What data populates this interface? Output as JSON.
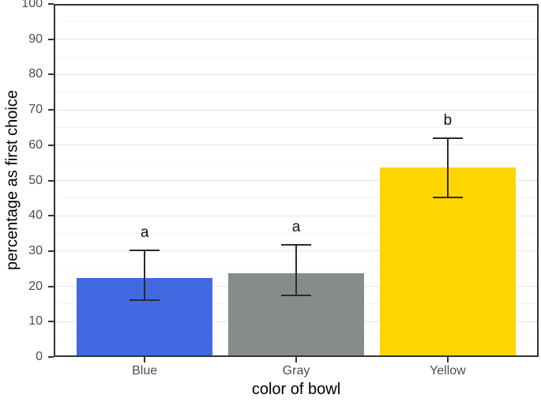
{
  "figure": {
    "type": "static-ggplot-style-bar-chart"
  },
  "chart_data": {
    "type": "bar",
    "title": "",
    "xlabel": "color of bowl",
    "ylabel": "percentage as first choice",
    "categories": [
      "Blue",
      "Gray",
      "Yellow"
    ],
    "values": [
      22.3,
      23.8,
      53.6
    ],
    "error_low": [
      16.2,
      17.4,
      45.2
    ],
    "error_high": [
      30.2,
      31.8,
      62.0
    ],
    "sig_letters": [
      "a",
      "a",
      "b"
    ],
    "bar_colors": [
      "#4169E1",
      "#858C8A",
      "#FFD500"
    ],
    "ylim": [
      0,
      100
    ],
    "ytick_step": 10,
    "minor_step": 5,
    "grid": "horizontal major and minor gridlines",
    "legend": "none"
  },
  "colors": {
    "major_grid": "#E6E6E6",
    "minor_grid": "#F4F4F4",
    "axis_line": "#333333",
    "tick_text": "#4D4D4D",
    "title_text": "#000000",
    "error_bar": "#2B2B2B",
    "background": "#FFFFFF"
  }
}
